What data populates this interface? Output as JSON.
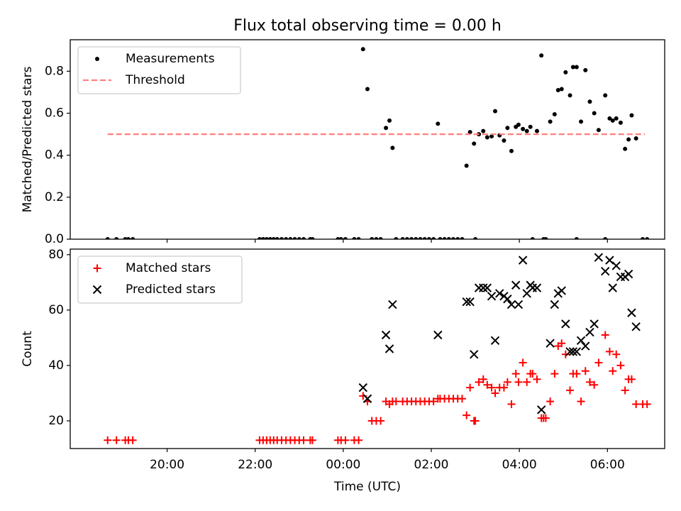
{
  "title": "Flux total observing time = 0.00 h",
  "colors": {
    "measurement": "#000000",
    "threshold": "#ff7f7f",
    "matched": "#ff0000",
    "predicted": "#000000"
  },
  "chart_data": [
    {
      "id": "ratio",
      "type": "scatter",
      "ylabel": "Matched/Predicted stars",
      "xlabel": "",
      "x_unit": "hours since 00:00 UTC",
      "xlim": [
        -6.2,
        7.3
      ],
      "ylim": [
        0,
        0.95
      ],
      "yticks": [
        0.0,
        0.2,
        0.4,
        0.6,
        0.8
      ],
      "ytick_labels": [
        "0.0",
        "0.2",
        "0.4",
        "0.6",
        "0.8"
      ],
      "xticks": [
        -4,
        -2,
        0,
        2,
        4,
        6
      ],
      "show_x_tick_labels": false,
      "legend_position": "upper-left",
      "series": [
        {
          "name": "Measurements",
          "marker": "dot",
          "points": [
            [
              -5.35,
              0
            ],
            [
              -5.15,
              0
            ],
            [
              -4.95,
              0
            ],
            [
              -4.88,
              0
            ],
            [
              -4.78,
              0
            ],
            [
              -1.9,
              0
            ],
            [
              -1.82,
              0
            ],
            [
              -1.74,
              0
            ],
            [
              -1.66,
              0
            ],
            [
              -1.58,
              0
            ],
            [
              -1.5,
              0
            ],
            [
              -1.4,
              0
            ],
            [
              -1.3,
              0
            ],
            [
              -1.2,
              0
            ],
            [
              -1.1,
              0
            ],
            [
              -1.0,
              0
            ],
            [
              -0.9,
              0
            ],
            [
              -0.75,
              0
            ],
            [
              -0.7,
              0
            ],
            [
              -0.12,
              0
            ],
            [
              -0.05,
              0
            ],
            [
              0.05,
              0
            ],
            [
              0.25,
              0
            ],
            [
              0.35,
              0
            ],
            [
              0.65,
              0
            ],
            [
              0.75,
              0
            ],
            [
              0.85,
              0
            ],
            [
              1.2,
              0
            ],
            [
              1.35,
              0
            ],
            [
              1.45,
              0
            ],
            [
              1.55,
              0
            ],
            [
              1.65,
              0
            ],
            [
              1.75,
              0
            ],
            [
              1.85,
              0
            ],
            [
              1.95,
              0
            ],
            [
              2.05,
              0
            ],
            [
              2.2,
              0
            ],
            [
              2.3,
              0
            ],
            [
              2.4,
              0
            ],
            [
              2.5,
              0
            ],
            [
              2.6,
              0
            ],
            [
              2.7,
              0
            ],
            [
              3.0,
              0
            ],
            [
              4.3,
              0
            ],
            [
              4.55,
              0
            ],
            [
              4.6,
              0
            ],
            [
              5.3,
              0
            ],
            [
              5.95,
              0
            ],
            [
              6.8,
              0
            ],
            [
              6.9,
              0
            ],
            [
              0.45,
              0.905
            ],
            [
              0.55,
              0.715
            ],
            [
              0.97,
              0.53
            ],
            [
              1.05,
              0.565
            ],
            [
              1.12,
              0.435
            ],
            [
              2.15,
              0.55
            ],
            [
              2.8,
              0.35
            ],
            [
              2.88,
              0.51
            ],
            [
              2.97,
              0.455
            ],
            [
              3.08,
              0.5
            ],
            [
              3.18,
              0.515
            ],
            [
              3.27,
              0.485
            ],
            [
              3.37,
              0.49
            ],
            [
              3.45,
              0.61
            ],
            [
              3.55,
              0.495
            ],
            [
              3.65,
              0.47
            ],
            [
              3.73,
              0.53
            ],
            [
              3.82,
              0.42
            ],
            [
              3.92,
              0.535
            ],
            [
              3.98,
              0.545
            ],
            [
              4.08,
              0.525
            ],
            [
              4.17,
              0.515
            ],
            [
              4.25,
              0.535
            ],
            [
              4.4,
              0.515
            ],
            [
              4.5,
              0.875
            ],
            [
              4.7,
              0.56
            ],
            [
              4.8,
              0.595
            ],
            [
              4.88,
              0.71
            ],
            [
              4.96,
              0.715
            ],
            [
              5.05,
              0.795
            ],
            [
              5.15,
              0.685
            ],
            [
              5.22,
              0.82
            ],
            [
              5.3,
              0.82
            ],
            [
              5.4,
              0.56
            ],
            [
              5.5,
              0.805
            ],
            [
              5.6,
              0.655
            ],
            [
              5.7,
              0.6
            ],
            [
              5.8,
              0.52
            ],
            [
              5.95,
              0.685
            ],
            [
              6.05,
              0.575
            ],
            [
              6.12,
              0.565
            ],
            [
              6.2,
              0.575
            ],
            [
              6.3,
              0.555
            ],
            [
              6.4,
              0.43
            ],
            [
              6.48,
              0.475
            ],
            [
              6.55,
              0.59
            ],
            [
              6.65,
              0.48
            ]
          ]
        },
        {
          "name": "Threshold",
          "marker": "dashed-line",
          "points": [
            [
              -5.35,
              0.5
            ],
            [
              6.85,
              0.5
            ]
          ]
        }
      ]
    },
    {
      "id": "counts",
      "type": "scatter",
      "ylabel": "Count",
      "xlabel": "Time (UTC)",
      "x_unit": "hours since 00:00 UTC",
      "xlim": [
        -6.2,
        7.3
      ],
      "ylim": [
        10,
        82
      ],
      "yticks": [
        20,
        40,
        60,
        80
      ],
      "ytick_labels": [
        "20",
        "40",
        "60",
        "80"
      ],
      "xticks": [
        -4,
        -2,
        0,
        2,
        4,
        6
      ],
      "xtick_labels": [
        "20:00",
        "22:00",
        "00:00",
        "02:00",
        "04:00",
        "06:00"
      ],
      "legend_position": "upper-left",
      "series": [
        {
          "name": "Matched stars",
          "marker": "plus",
          "points": [
            [
              -5.35,
              13
            ],
            [
              -5.15,
              13
            ],
            [
              -4.95,
              13
            ],
            [
              -4.88,
              13
            ],
            [
              -4.78,
              13
            ],
            [
              -1.9,
              13
            ],
            [
              -1.82,
              13
            ],
            [
              -1.74,
              13
            ],
            [
              -1.66,
              13
            ],
            [
              -1.58,
              13
            ],
            [
              -1.5,
              13
            ],
            [
              -1.4,
              13
            ],
            [
              -1.3,
              13
            ],
            [
              -1.2,
              13
            ],
            [
              -1.1,
              13
            ],
            [
              -1.0,
              13
            ],
            [
              -0.9,
              13
            ],
            [
              -0.75,
              13
            ],
            [
              -0.7,
              13
            ],
            [
              -0.12,
              13
            ],
            [
              -0.05,
              13
            ],
            [
              0.05,
              13
            ],
            [
              0.25,
              13
            ],
            [
              0.35,
              13
            ],
            [
              0.45,
              29
            ],
            [
              0.55,
              27
            ],
            [
              0.65,
              20
            ],
            [
              0.75,
              20
            ],
            [
              0.85,
              20
            ],
            [
              0.97,
              27
            ],
            [
              1.05,
              26
            ],
            [
              1.12,
              27
            ],
            [
              1.2,
              27
            ],
            [
              1.35,
              27
            ],
            [
              1.45,
              27
            ],
            [
              1.55,
              27
            ],
            [
              1.65,
              27
            ],
            [
              1.75,
              27
            ],
            [
              1.85,
              27
            ],
            [
              1.95,
              27
            ],
            [
              2.05,
              27
            ],
            [
              2.15,
              28
            ],
            [
              2.2,
              28
            ],
            [
              2.3,
              28
            ],
            [
              2.4,
              28
            ],
            [
              2.5,
              28
            ],
            [
              2.6,
              28
            ],
            [
              2.7,
              28
            ],
            [
              2.8,
              22
            ],
            [
              2.88,
              32
            ],
            [
              2.97,
              20
            ],
            [
              3.0,
              20
            ],
            [
              3.08,
              34
            ],
            [
              3.18,
              35
            ],
            [
              3.27,
              33
            ],
            [
              3.37,
              32
            ],
            [
              3.45,
              30
            ],
            [
              3.55,
              32
            ],
            [
              3.65,
              32
            ],
            [
              3.73,
              34
            ],
            [
              3.82,
              26
            ],
            [
              3.92,
              37
            ],
            [
              3.98,
              34
            ],
            [
              4.08,
              41
            ],
            [
              4.17,
              34
            ],
            [
              4.25,
              37
            ],
            [
              4.3,
              37
            ],
            [
              4.4,
              35
            ],
            [
              4.5,
              21
            ],
            [
              4.55,
              21
            ],
            [
              4.6,
              21
            ],
            [
              4.7,
              27
            ],
            [
              4.8,
              37
            ],
            [
              4.88,
              47
            ],
            [
              4.96,
              48
            ],
            [
              5.05,
              44
            ],
            [
              5.15,
              31
            ],
            [
              5.22,
              37
            ],
            [
              5.3,
              37
            ],
            [
              5.4,
              27
            ],
            [
              5.5,
              38
            ],
            [
              5.6,
              34
            ],
            [
              5.7,
              33
            ],
            [
              5.8,
              41
            ],
            [
              5.95,
              51
            ],
            [
              6.05,
              45
            ],
            [
              6.12,
              38
            ],
            [
              6.2,
              44
            ],
            [
              6.3,
              40
            ],
            [
              6.4,
              31
            ],
            [
              6.48,
              35
            ],
            [
              6.55,
              35
            ],
            [
              6.65,
              26
            ],
            [
              6.8,
              26
            ],
            [
              6.9,
              26
            ]
          ]
        },
        {
          "name": "Predicted stars",
          "marker": "x",
          "points": [
            [
              0.45,
              32
            ],
            [
              0.55,
              28
            ],
            [
              0.97,
              51
            ],
            [
              1.05,
              46
            ],
            [
              1.12,
              62
            ],
            [
              2.15,
              51
            ],
            [
              2.8,
              63
            ],
            [
              2.88,
              63
            ],
            [
              2.97,
              44
            ],
            [
              3.08,
              68
            ],
            [
              3.18,
              68
            ],
            [
              3.27,
              68
            ],
            [
              3.37,
              65
            ],
            [
              3.45,
              49
            ],
            [
              3.55,
              66
            ],
            [
              3.65,
              65
            ],
            [
              3.73,
              64
            ],
            [
              3.82,
              62
            ],
            [
              3.92,
              69
            ],
            [
              3.98,
              62
            ],
            [
              4.08,
              78
            ],
            [
              4.17,
              66
            ],
            [
              4.25,
              69
            ],
            [
              4.3,
              68
            ],
            [
              4.4,
              68
            ],
            [
              4.5,
              24
            ],
            [
              4.7,
              48
            ],
            [
              4.8,
              62
            ],
            [
              4.88,
              66
            ],
            [
              4.96,
              67
            ],
            [
              5.05,
              55
            ],
            [
              5.15,
              45
            ],
            [
              5.22,
              45
            ],
            [
              5.3,
              45
            ],
            [
              5.4,
              49
            ],
            [
              5.5,
              47
            ],
            [
              5.6,
              52
            ],
            [
              5.7,
              55
            ],
            [
              5.8,
              79
            ],
            [
              5.95,
              74
            ],
            [
              6.05,
              78
            ],
            [
              6.12,
              68
            ],
            [
              6.2,
              76
            ],
            [
              6.3,
              72
            ],
            [
              6.4,
              72
            ],
            [
              6.48,
              73
            ],
            [
              6.55,
              59
            ],
            [
              6.65,
              54
            ]
          ]
        }
      ]
    }
  ]
}
